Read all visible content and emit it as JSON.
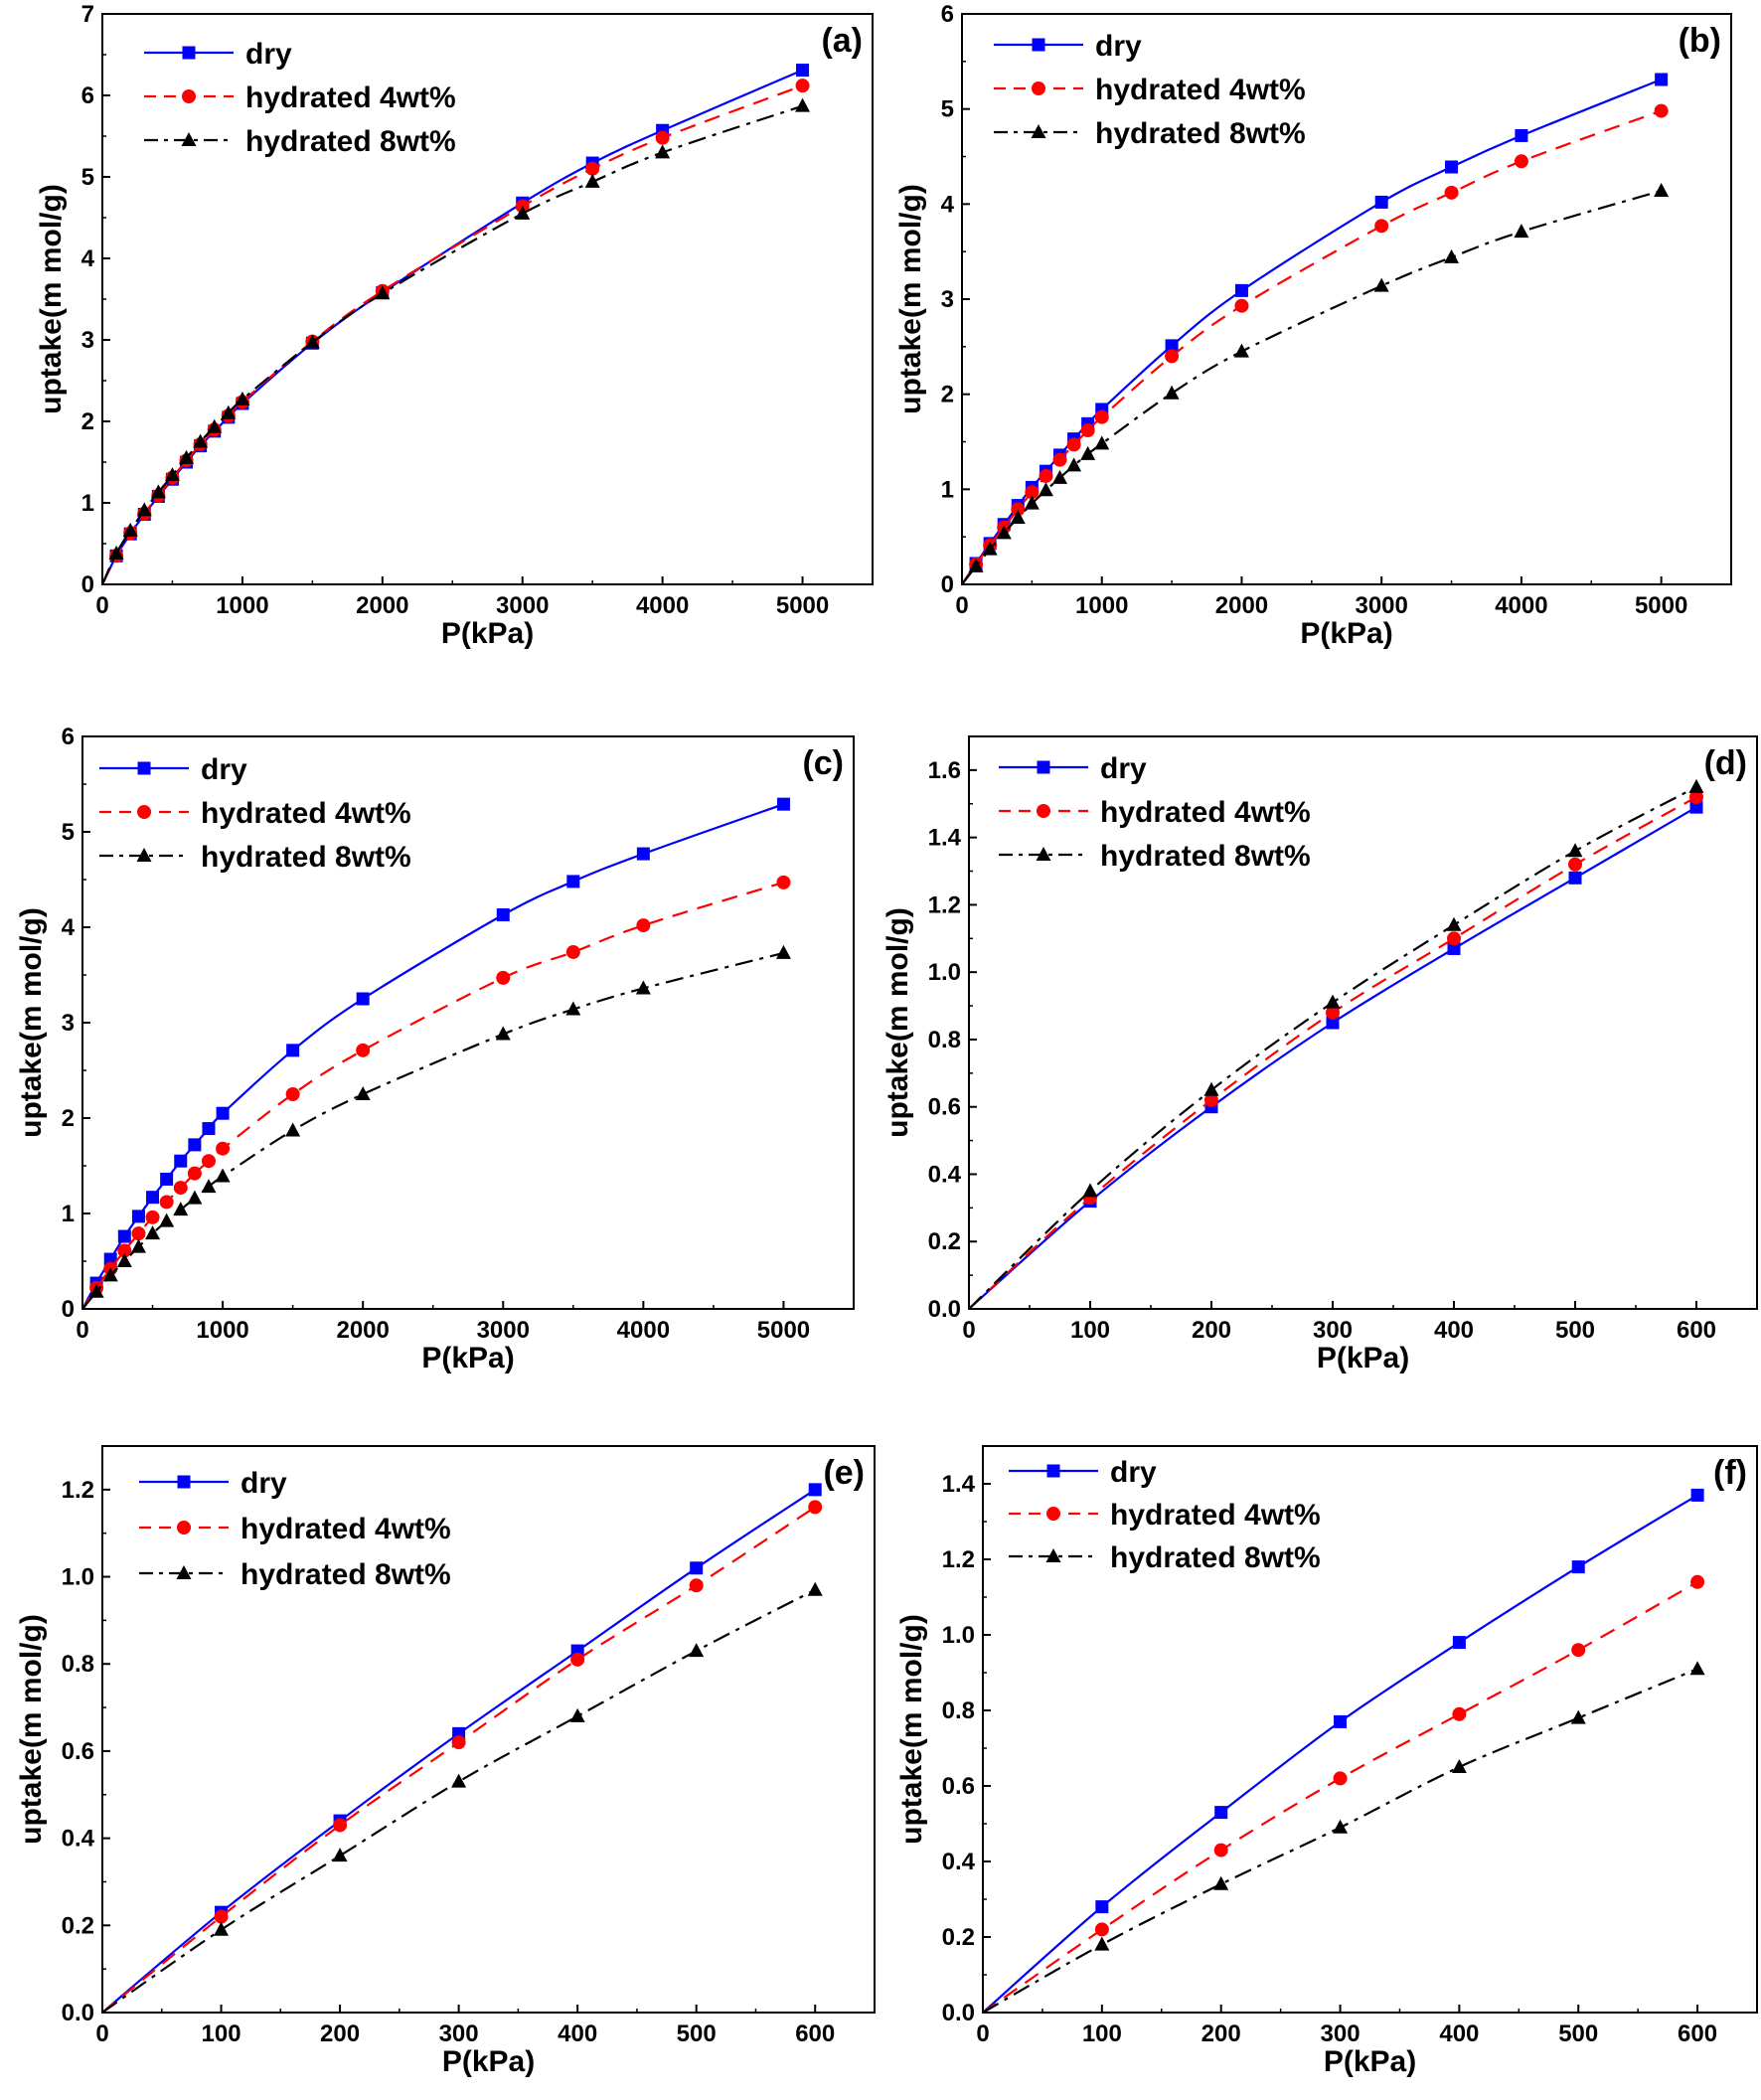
{
  "colors": {
    "dry": "#0000ff",
    "hydrated_4": "#ff0000",
    "hydrated_8": "#000000"
  },
  "chart_data": [
    {
      "panel_label": "(a)",
      "type": "line",
      "xlabel": "P(kPa)",
      "ylabel": "uptake(m mol/g)",
      "xlim": [
        0,
        5500
      ],
      "ylim": [
        0,
        7
      ],
      "xticks": [
        0,
        1000,
        2000,
        3000,
        4000,
        5000
      ],
      "yticks": [
        0,
        1,
        2,
        3,
        4,
        5,
        6,
        7
      ],
      "x": [
        0,
        100,
        200,
        300,
        400,
        500,
        600,
        700,
        800,
        900,
        1000,
        1500,
        2000,
        3000,
        3500,
        4000,
        5000
      ],
      "series": [
        {
          "name": "dry",
          "marker": "square",
          "values": [
            0,
            0.35,
            0.62,
            0.86,
            1.08,
            1.29,
            1.5,
            1.7,
            1.88,
            2.05,
            2.22,
            2.96,
            3.58,
            4.68,
            5.17,
            5.57,
            6.31
          ]
        },
        {
          "name": "hydrated 4wt%",
          "marker": "circle",
          "values": [
            0,
            0.35,
            0.63,
            0.87,
            1.09,
            1.31,
            1.52,
            1.72,
            1.9,
            2.07,
            2.24,
            2.98,
            3.6,
            4.64,
            5.1,
            5.48,
            6.12
          ]
        },
        {
          "name": "hydrated 8wt%",
          "marker": "triangle",
          "values": [
            0,
            0.38,
            0.66,
            0.91,
            1.13,
            1.34,
            1.55,
            1.75,
            1.93,
            2.1,
            2.27,
            2.97,
            3.57,
            4.55,
            4.94,
            5.3,
            5.87
          ]
        }
      ]
    },
    {
      "panel_label": "(b)",
      "type": "line",
      "xlabel": "P(kPa)",
      "ylabel": "uptake(m mol/g)",
      "xlim": [
        0,
        5500
      ],
      "ylim": [
        0,
        6
      ],
      "xticks": [
        0,
        1000,
        2000,
        3000,
        4000,
        5000
      ],
      "yticks": [
        0,
        1,
        2,
        3,
        4,
        5,
        6
      ],
      "x": [
        0,
        100,
        200,
        300,
        400,
        500,
        600,
        700,
        800,
        900,
        1000,
        1500,
        2000,
        3000,
        3500,
        4000,
        5000
      ],
      "series": [
        {
          "name": "dry",
          "marker": "square",
          "values": [
            0,
            0.22,
            0.43,
            0.63,
            0.83,
            1.02,
            1.19,
            1.36,
            1.53,
            1.69,
            1.84,
            2.51,
            3.09,
            4.02,
            4.39,
            4.72,
            5.31
          ]
        },
        {
          "name": "hydrated 4wt%",
          "marker": "circle",
          "values": [
            0,
            0.21,
            0.41,
            0.6,
            0.79,
            0.97,
            1.14,
            1.31,
            1.47,
            1.62,
            1.76,
            2.4,
            2.93,
            3.77,
            4.12,
            4.45,
            4.98
          ]
        },
        {
          "name": "hydrated 8wt%",
          "marker": "triangle",
          "values": [
            0,
            0.19,
            0.37,
            0.54,
            0.7,
            0.85,
            0.99,
            1.12,
            1.25,
            1.37,
            1.48,
            2.01,
            2.45,
            3.14,
            3.44,
            3.71,
            4.14
          ]
        }
      ]
    },
    {
      "panel_label": "(c)",
      "type": "line",
      "xlabel": "P(kPa)",
      "ylabel": "uptake(m mol/g)",
      "xlim": [
        0,
        5500
      ],
      "ylim": [
        0,
        6
      ],
      "xticks": [
        0,
        1000,
        2000,
        3000,
        4000,
        5000
      ],
      "yticks": [
        0,
        1,
        2,
        3,
        4,
        5,
        6
      ],
      "x": [
        0,
        100,
        200,
        300,
        400,
        500,
        600,
        700,
        800,
        900,
        1000,
        1500,
        2000,
        3000,
        3500,
        4000,
        5000
      ],
      "series": [
        {
          "name": "dry",
          "marker": "square",
          "values": [
            0,
            0.27,
            0.52,
            0.76,
            0.97,
            1.17,
            1.36,
            1.55,
            1.72,
            1.89,
            2.05,
            2.71,
            3.25,
            4.13,
            4.48,
            4.77,
            5.29
          ]
        },
        {
          "name": "hydrated 4wt%",
          "marker": "circle",
          "values": [
            0,
            0.22,
            0.42,
            0.61,
            0.79,
            0.96,
            1.12,
            1.27,
            1.42,
            1.55,
            1.68,
            2.25,
            2.71,
            3.47,
            3.74,
            4.02,
            4.47
          ]
        },
        {
          "name": "hydrated 8wt%",
          "marker": "triangle",
          "values": [
            0,
            0.18,
            0.35,
            0.5,
            0.65,
            0.79,
            0.92,
            1.04,
            1.16,
            1.28,
            1.39,
            1.87,
            2.25,
            2.88,
            3.14,
            3.36,
            3.73
          ]
        }
      ]
    },
    {
      "panel_label": "(d)",
      "type": "line",
      "xlabel": "P(kPa)",
      "ylabel": "uptake(m mol/g)",
      "xlim": [
        0,
        650
      ],
      "ylim": [
        0,
        1.7
      ],
      "xticks": [
        0,
        100,
        200,
        300,
        400,
        500,
        600
      ],
      "yticks": [
        0.0,
        0.2,
        0.4,
        0.6,
        0.8,
        1.0,
        1.2,
        1.4,
        1.6
      ],
      "x": [
        0,
        100,
        200,
        300,
        400,
        500,
        600
      ],
      "series": [
        {
          "name": "dry",
          "marker": "square",
          "values": [
            0,
            0.32,
            0.6,
            0.85,
            1.07,
            1.28,
            1.49
          ]
        },
        {
          "name": "hydrated 4wt%",
          "marker": "circle",
          "values": [
            0,
            0.33,
            0.62,
            0.88,
            1.1,
            1.32,
            1.52
          ]
        },
        {
          "name": "hydrated 8wt%",
          "marker": "triangle",
          "values": [
            0,
            0.35,
            0.65,
            0.91,
            1.14,
            1.36,
            1.55
          ]
        }
      ]
    },
    {
      "panel_label": "(e)",
      "type": "line",
      "xlabel": "P(kPa)",
      "ylabel": "uptake(m mol/g)",
      "xlim": [
        0,
        650
      ],
      "ylim": [
        0,
        1.3
      ],
      "xticks": [
        0,
        100,
        200,
        300,
        400,
        500,
        600
      ],
      "yticks": [
        0.0,
        0.2,
        0.4,
        0.6,
        0.8,
        1.0,
        1.2
      ],
      "x": [
        0,
        100,
        200,
        300,
        400,
        500,
        600
      ],
      "series": [
        {
          "name": "dry",
          "marker": "square",
          "values": [
            0,
            0.23,
            0.44,
            0.64,
            0.83,
            1.02,
            1.2
          ]
        },
        {
          "name": "hydrated 4wt%",
          "marker": "circle",
          "values": [
            0,
            0.22,
            0.43,
            0.62,
            0.81,
            0.98,
            1.16
          ]
        },
        {
          "name": "hydrated 8wt%",
          "marker": "triangle",
          "values": [
            0,
            0.19,
            0.36,
            0.53,
            0.68,
            0.83,
            0.97
          ]
        }
      ]
    },
    {
      "panel_label": "(f)",
      "type": "line",
      "xlabel": "P(kPa)",
      "ylabel": "uptake(m mol/g)",
      "xlim": [
        0,
        650
      ],
      "ylim": [
        0,
        1.5
      ],
      "xticks": [
        0,
        100,
        200,
        300,
        400,
        500,
        600
      ],
      "yticks": [
        0.0,
        0.2,
        0.4,
        0.6,
        0.8,
        1.0,
        1.2,
        1.4
      ],
      "x": [
        0,
        100,
        200,
        300,
        400,
        500,
        600
      ],
      "series": [
        {
          "name": "dry",
          "marker": "square",
          "values": [
            0,
            0.28,
            0.53,
            0.77,
            0.98,
            1.18,
            1.37
          ]
        },
        {
          "name": "hydrated 4wt%",
          "marker": "circle",
          "values": [
            0,
            0.22,
            0.43,
            0.62,
            0.79,
            0.96,
            1.14
          ]
        },
        {
          "name": "hydrated 8wt%",
          "marker": "triangle",
          "values": [
            0,
            0.18,
            0.34,
            0.49,
            0.65,
            0.78,
            0.91
          ]
        }
      ]
    }
  ]
}
